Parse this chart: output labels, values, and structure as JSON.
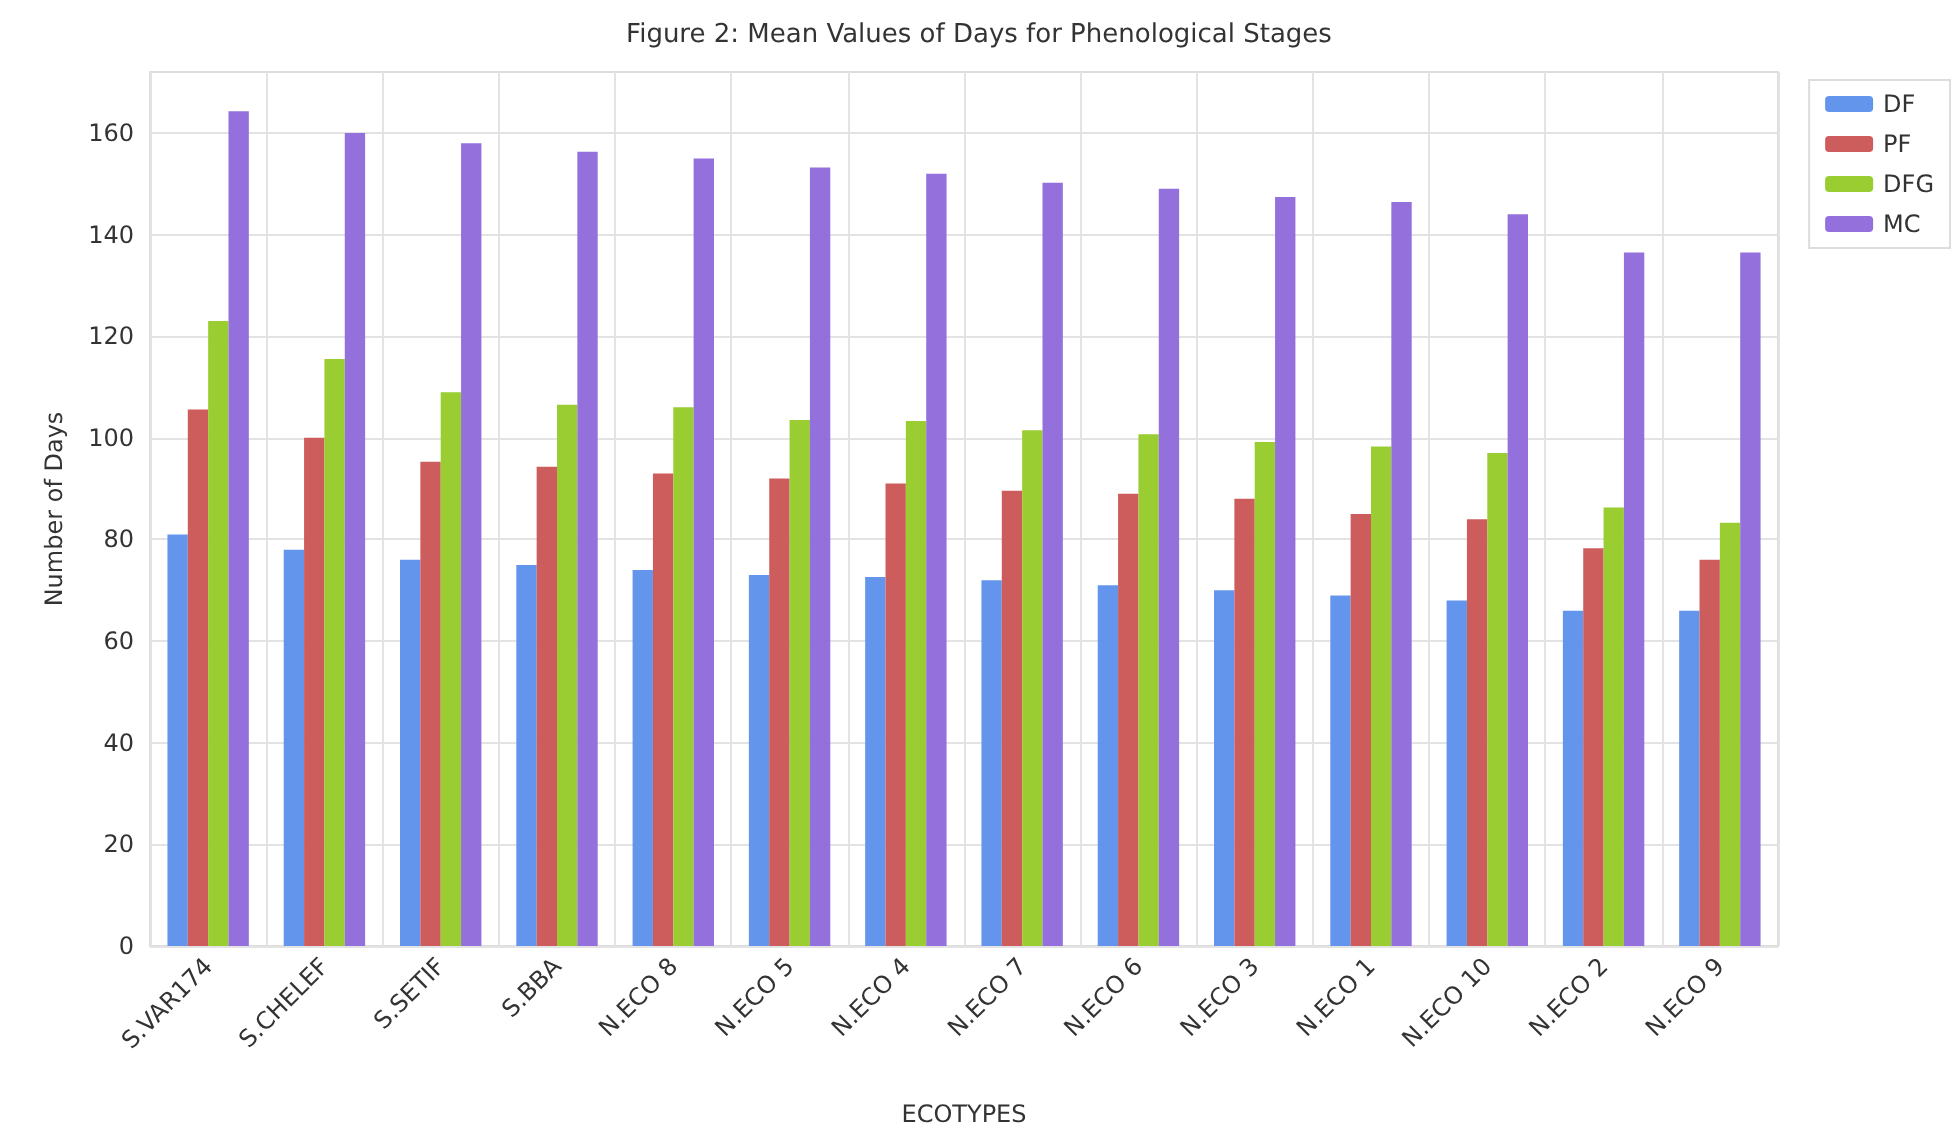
{
  "chart_data": {
    "type": "bar",
    "title": "Figure 2: Mean Values of Days for Phenological Stages",
    "xlabel": "ECOTYPES",
    "ylabel": "Number of Days",
    "categories": [
      "S.VAR174",
      "S.CHELEF",
      "S.SETIF",
      "S.BBA",
      "N.ECO 8",
      "N.ECO 5",
      "N.ECO 4",
      "N.ECO 7",
      "N.ECO 6",
      "N.ECO 3",
      "N.ECO 1",
      "N.ECO 10",
      "N.ECO 2",
      "N.ECO 9"
    ],
    "series": [
      {
        "name": "DF",
        "color": "#6495ed",
        "values": [
          81,
          78,
          76,
          75,
          74,
          73,
          72.6,
          72,
          71,
          70,
          69,
          68,
          66,
          66
        ]
      },
      {
        "name": "PF",
        "color": "#cd5c5c",
        "values": [
          105.6,
          100,
          95.3,
          94.3,
          93,
          92,
          91,
          89.6,
          89,
          88,
          85,
          84,
          78.3,
          76
        ]
      },
      {
        "name": "DFG",
        "color": "#9acd32",
        "values": [
          123,
          115.5,
          109,
          106.5,
          106,
          103.5,
          103.3,
          101.5,
          100.7,
          99.2,
          98.3,
          97,
          86.3,
          83.3
        ]
      },
      {
        "name": "MC",
        "color": "#9370db",
        "values": [
          164.3,
          160,
          158,
          156.3,
          155,
          153.2,
          152,
          150.2,
          149,
          147.4,
          146.4,
          144,
          136.5,
          136.5
        ]
      }
    ],
    "ylim": [
      0,
      172
    ],
    "yticks": [
      0,
      20,
      40,
      60,
      80,
      100,
      120,
      140,
      160
    ],
    "grid": true,
    "legend": "top right"
  }
}
